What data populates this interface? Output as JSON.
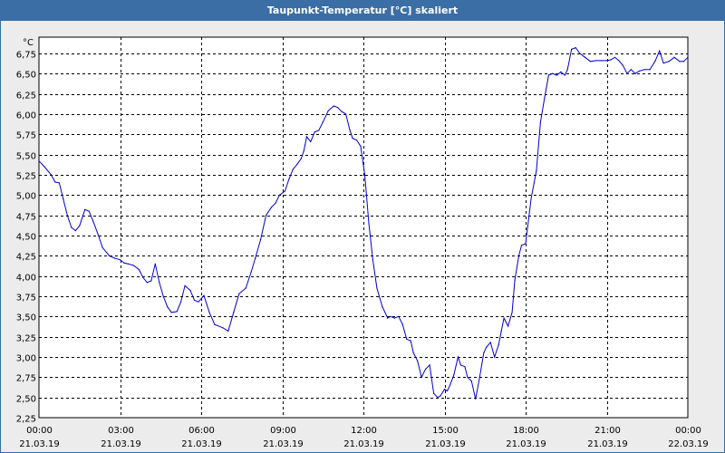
{
  "window": {
    "title": "Taupunkt-Temperatur [°C] skaliert"
  },
  "chart_data": {
    "type": "line",
    "title": "Taupunkt-Temperatur [°C] skaliert",
    "ylabel_unit": "°C",
    "ylim": [
      2.25,
      6.95
    ],
    "xlim_hours": [
      0,
      24
    ],
    "grid": true,
    "y_ticks": [
      "6,75",
      "6,50",
      "6,25",
      "6,00",
      "5,75",
      "5,50",
      "5,25",
      "5,00",
      "4,75",
      "4,50",
      "4,25",
      "4,00",
      "3,75",
      "3,50",
      "3,25",
      "3,00",
      "2,75",
      "2,50",
      "2,25"
    ],
    "y_tick_values": [
      6.75,
      6.5,
      6.25,
      6.0,
      5.75,
      5.5,
      5.25,
      5.0,
      4.75,
      4.5,
      4.25,
      4.0,
      3.75,
      3.5,
      3.25,
      3.0,
      2.75,
      2.5,
      2.25
    ],
    "x_ticks": [
      {
        "time": "00:00",
        "date": "21.03.19",
        "hour": 0
      },
      {
        "time": "03:00",
        "date": "21.03.19",
        "hour": 3
      },
      {
        "time": "06:00",
        "date": "21.03.19",
        "hour": 6
      },
      {
        "time": "09:00",
        "date": "21.03.19",
        "hour": 9
      },
      {
        "time": "12:00",
        "date": "21.03.19",
        "hour": 12
      },
      {
        "time": "15:00",
        "date": "21.03.19",
        "hour": 15
      },
      {
        "time": "18:00",
        "date": "21.03.19",
        "hour": 18
      },
      {
        "time": "21:00",
        "date": "21.03.19",
        "hour": 21
      },
      {
        "time": "00:00",
        "date": "22.03.19",
        "hour": 24
      }
    ],
    "series": [
      {
        "color": "#0000cc",
        "x_hours": [
          0.0,
          0.2,
          0.45,
          0.6,
          0.75,
          0.9,
          1.05,
          1.2,
          1.35,
          1.5,
          1.7,
          1.85,
          2.0,
          2.2,
          2.35,
          2.6,
          2.8,
          3.0,
          3.15,
          3.3,
          3.5,
          3.7,
          3.85,
          4.0,
          4.15,
          4.3,
          4.45,
          4.6,
          4.75,
          4.9,
          5.1,
          5.25,
          5.4,
          5.6,
          5.75,
          5.9,
          6.1,
          6.3,
          6.5,
          6.8,
          7.0,
          7.2,
          7.4,
          7.65,
          7.85,
          8.0,
          8.2,
          8.4,
          8.6,
          8.75,
          8.9,
          9.1,
          9.25,
          9.4,
          9.55,
          9.7,
          9.8,
          9.9,
          10.05,
          10.2,
          10.35,
          10.5,
          10.7,
          10.9,
          11.05,
          11.2,
          11.35,
          11.5,
          11.6,
          11.75,
          11.9,
          12.05,
          12.2,
          12.35,
          12.5,
          12.7,
          12.9,
          13.0,
          13.15,
          13.3,
          13.45,
          13.6,
          13.75,
          13.85,
          14.0,
          14.15,
          14.3,
          14.45,
          14.6,
          14.75,
          14.85,
          15.0,
          15.1,
          15.2,
          15.35,
          15.5,
          15.6,
          15.75,
          15.85,
          16.0,
          16.15,
          16.3,
          16.45,
          16.55,
          16.7,
          16.85,
          17.0,
          17.1,
          17.2,
          17.35,
          17.5,
          17.6,
          17.75,
          17.85,
          18.0,
          18.2,
          18.4,
          18.55,
          18.7,
          18.85,
          19.0,
          19.15,
          19.3,
          19.45,
          19.55,
          19.7,
          19.85,
          20.0,
          20.2,
          20.4,
          20.6,
          20.8,
          21.0,
          21.15,
          21.3,
          21.45,
          21.6,
          21.75,
          21.9,
          22.05,
          22.2,
          22.4,
          22.6,
          22.8,
          22.95,
          23.1,
          23.3,
          23.5,
          23.7,
          23.85,
          24.0
        ],
        "values": [
          5.42,
          5.35,
          5.25,
          5.16,
          5.15,
          4.95,
          4.75,
          4.6,
          4.56,
          4.62,
          4.82,
          4.8,
          4.68,
          4.5,
          4.35,
          4.25,
          4.22,
          4.2,
          4.16,
          4.15,
          4.13,
          4.08,
          3.98,
          3.92,
          3.94,
          4.15,
          3.92,
          3.75,
          3.62,
          3.55,
          3.56,
          3.68,
          3.88,
          3.82,
          3.7,
          3.68,
          3.76,
          3.55,
          3.4,
          3.36,
          3.32,
          3.55,
          3.78,
          3.85,
          4.05,
          4.22,
          4.45,
          4.75,
          4.85,
          4.9,
          5.0,
          5.05,
          5.2,
          5.32,
          5.38,
          5.45,
          5.55,
          5.72,
          5.66,
          5.78,
          5.8,
          5.9,
          6.04,
          6.1,
          6.08,
          6.03,
          6.0,
          5.8,
          5.7,
          5.68,
          5.6,
          5.25,
          4.65,
          4.2,
          3.85,
          3.62,
          3.48,
          3.5,
          3.48,
          3.5,
          3.4,
          3.22,
          3.2,
          3.05,
          2.95,
          2.75,
          2.85,
          2.9,
          2.55,
          2.5,
          2.52,
          2.6,
          2.58,
          2.65,
          2.78,
          3.0,
          2.9,
          2.88,
          2.75,
          2.7,
          2.48,
          2.75,
          3.05,
          3.12,
          3.18,
          3.0,
          3.15,
          3.32,
          3.48,
          3.38,
          3.55,
          3.95,
          4.25,
          4.38,
          4.4,
          4.95,
          5.3,
          5.9,
          6.2,
          6.48,
          6.5,
          6.48,
          6.52,
          6.48,
          6.55,
          6.8,
          6.82,
          6.75,
          6.7,
          6.65,
          6.66,
          6.66,
          6.66,
          6.67,
          6.7,
          6.66,
          6.6,
          6.5,
          6.55,
          6.5,
          6.53,
          6.55,
          6.55,
          6.66,
          6.78,
          6.63,
          6.65,
          6.7,
          6.65,
          6.65,
          6.7
        ]
      }
    ]
  }
}
